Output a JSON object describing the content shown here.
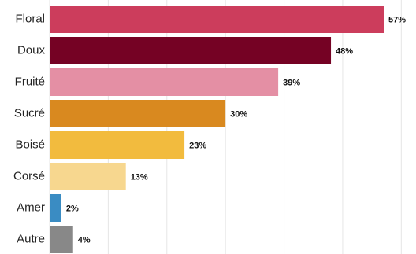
{
  "chart_data": {
    "type": "bar",
    "orientation": "horizontal",
    "categories": [
      "Floral",
      "Doux",
      "Fruité",
      "Sucré",
      "Boisé",
      "Corsé",
      "Amer",
      "Autre"
    ],
    "values": [
      57,
      48,
      39,
      30,
      23,
      13,
      2,
      4
    ],
    "value_labels": [
      "57%",
      "48%",
      "39%",
      "30%",
      "23%",
      "13%",
      "2%",
      "4%"
    ],
    "colors": [
      "#cc3d5c",
      "#750224",
      "#e48fa4",
      "#d9891f",
      "#f2bb3e",
      "#f7d78f",
      "#3a8cc3",
      "#888888"
    ],
    "xlim": [
      0,
      60
    ],
    "grid": true,
    "title": "",
    "xlabel": "",
    "ylabel": ""
  }
}
